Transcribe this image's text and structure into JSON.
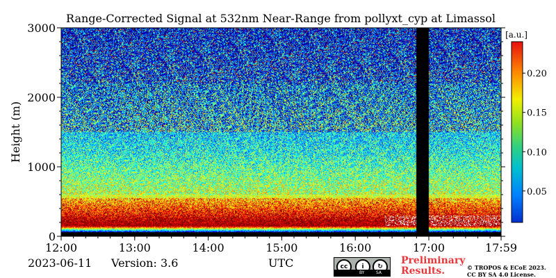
{
  "chart_data": {
    "type": "heatmap",
    "title": "Range-Corrected Signal at 532nm Near-Range from pollyxt_cyp at Limassol",
    "xlabel": "UTC",
    "ylabel": "Height (m)",
    "x_ticks": [
      "12:00",
      "13:00",
      "14:00",
      "15:00",
      "16:00",
      "17:00",
      "17:59"
    ],
    "x_tick_hours": [
      12,
      13,
      14,
      15,
      16,
      17,
      17.983
    ],
    "x_range_hours": [
      12,
      17.983
    ],
    "y_ticks": [
      0,
      1000,
      2000,
      3000
    ],
    "y_range": [
      0,
      3000
    ],
    "colorbar": {
      "label": "[a.u.]",
      "ticks": [
        "0.05",
        "0.10",
        "0.15",
        "0.20"
      ],
      "tick_values": [
        0.05,
        0.1,
        0.15,
        0.2
      ],
      "range": [
        0.01,
        0.24
      ],
      "colormap": "jet"
    },
    "no_data_interval_hours": [
      16.83,
      17.0
    ],
    "profile_summary": [
      {
        "height_m": 50,
        "value": 0.01
      },
      {
        "height_m": 150,
        "value": 0.24
      },
      {
        "height_m": 300,
        "value": 0.2
      },
      {
        "height_m": 600,
        "value": 0.14
      },
      {
        "height_m": 1200,
        "value": 0.1
      },
      {
        "height_m": 2000,
        "value": 0.07
      },
      {
        "height_m": 3000,
        "value": 0.04
      }
    ]
  },
  "footer": {
    "date": "2023-06-11",
    "version": "Version: 3.6",
    "utc_label": "UTC",
    "license_badge": {
      "icon": "cc-by-sa-icon",
      "text_by": "BY",
      "text_sa": "SA"
    },
    "preliminary": [
      "Preliminary",
      "Results."
    ],
    "copyright": [
      "© TROPOS & ECoE 2023.",
      "CC BY SA 4.0 License."
    ]
  }
}
